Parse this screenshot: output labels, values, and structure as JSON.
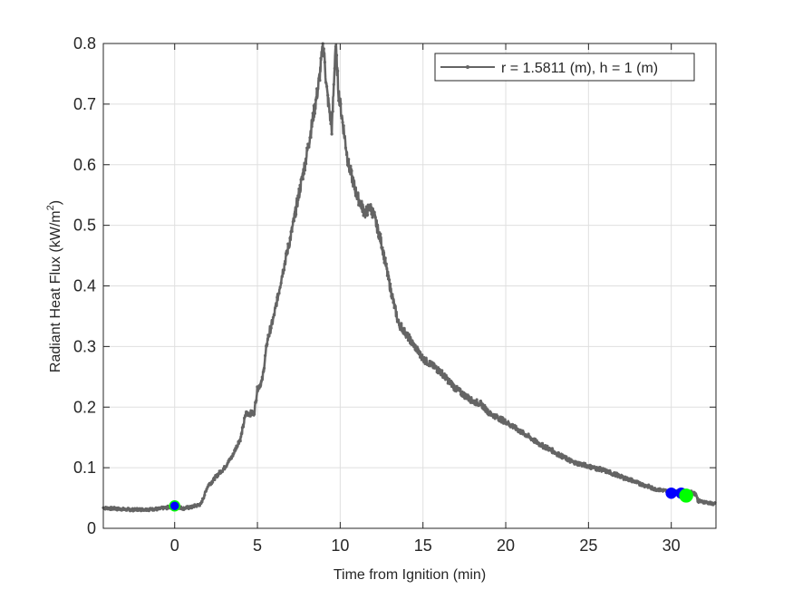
{
  "chart_data": {
    "type": "line",
    "title": "",
    "xlabel": "Time from Ignition (min)",
    "ylabel_main": "Radiant Heat Flux (kW/m",
    "ylabel_sup": "2",
    "ylabel_close": ")",
    "xlim": [
      -4.31,
      32.7
    ],
    "ylim": [
      0,
      0.8
    ],
    "xticks": [
      0,
      5,
      10,
      15,
      20,
      25,
      30
    ],
    "yticks": [
      0,
      0.1,
      0.2,
      0.3,
      0.4,
      0.5,
      0.6,
      0.7,
      0.8
    ],
    "ytick_labels": [
      "0",
      "0.1",
      "0.2",
      "0.3",
      "0.4",
      "0.5",
      "0.6",
      "0.7",
      "0.8"
    ],
    "grid": true,
    "legend": {
      "placement": "top-right",
      "entries": [
        "r = 1.5811 (m), h = 1 (m)"
      ]
    },
    "series": [
      {
        "name": "r = 1.5811 (m), h = 1 (m)",
        "color": "#646464",
        "x": [
          -4.31,
          -3,
          -2,
          -1,
          0,
          0.5,
          1,
          1.6,
          2,
          2.5,
          3,
          3.5,
          4,
          4.3,
          4.8,
          5,
          5.3,
          5.6,
          6,
          6.5,
          7,
          7.5,
          8,
          8.5,
          8.7,
          8.98,
          9.2,
          9.5,
          9.72,
          9.9,
          10.5,
          11,
          11.5,
          11.8,
          12,
          12.5,
          13,
          13.5,
          14,
          15,
          16,
          17,
          18,
          18.5,
          19,
          20,
          22,
          24,
          26,
          28,
          29,
          30,
          31,
          31.5,
          31.6,
          32.7
        ],
        "y": [
          0.034,
          0.031,
          0.031,
          0.032,
          0.036,
          0.033,
          0.035,
          0.04,
          0.07,
          0.085,
          0.1,
          0.12,
          0.15,
          0.19,
          0.19,
          0.23,
          0.245,
          0.31,
          0.35,
          0.42,
          0.48,
          0.55,
          0.62,
          0.7,
          0.733,
          0.8,
          0.72,
          0.658,
          0.8,
          0.72,
          0.6,
          0.55,
          0.52,
          0.53,
          0.52,
          0.47,
          0.4,
          0.34,
          0.32,
          0.28,
          0.26,
          0.23,
          0.21,
          0.205,
          0.19,
          0.176,
          0.14,
          0.11,
          0.095,
          0.075,
          0.065,
          0.06,
          0.06,
          0.057,
          0.045,
          0.04
        ]
      }
    ],
    "markers": [
      {
        "x": 0,
        "y": 0.037,
        "fill": "#0000ff",
        "edge": "#00ff00",
        "size": "small"
      },
      {
        "x": 30.0,
        "y": 0.058,
        "fill": "#0000ff",
        "edge": "#0000ff",
        "size": "small"
      },
      {
        "x": 30.6,
        "y": 0.058,
        "fill": "#0000ff",
        "edge": "#0000ff",
        "size": "small"
      },
      {
        "x": 30.9,
        "y": 0.054,
        "fill": "#00ff00",
        "edge": "#00ff00",
        "size": "large"
      }
    ]
  }
}
